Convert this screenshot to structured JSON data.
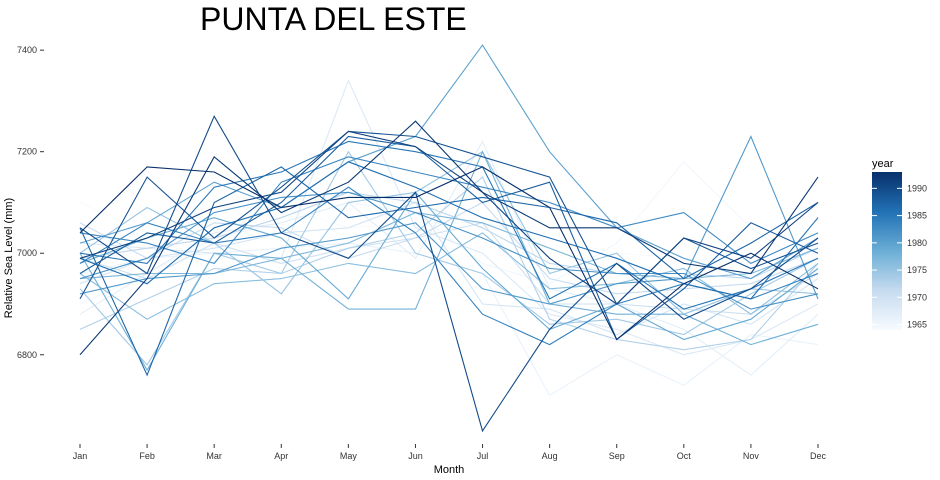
{
  "chart_data": {
    "type": "line",
    "title": "PUNTA DEL ESTE",
    "xlabel": "Month",
    "ylabel": "Relative Sea Level (mm)",
    "categories": [
      "Jan",
      "Feb",
      "Mar",
      "Apr",
      "May",
      "Jun",
      "Jul",
      "Aug",
      "Sep",
      "Oct",
      "Nov",
      "Dec"
    ],
    "y_ticks": [
      6800,
      7000,
      7200,
      7400
    ],
    "ylim": [
      6640,
      7420
    ],
    "grid": false,
    "legend": {
      "title": "year",
      "placement": "right",
      "type": "colorbar",
      "range": [
        1964,
        1993
      ],
      "ticks": [
        1965,
        1970,
        1975,
        1980,
        1985,
        1990
      ],
      "color_low": "#f7fbff",
      "color_high": "#08306b"
    },
    "series": [
      {
        "year": 1964,
        "values": [
          7100,
          7040,
          7090,
          7090,
          7050,
          7060,
          7060,
          7030,
          7000,
          6990,
          6980,
          7000
        ]
      },
      {
        "year": 1965,
        "values": [
          6900,
          6960,
          7030,
          7060,
          7100,
          7080,
          6980,
          6940,
          7020,
          7180,
          7050,
          6960
        ]
      },
      {
        "year": 1966,
        "values": [
          6960,
          6990,
          7000,
          7010,
          7020,
          7000,
          6960,
          6720,
          6800,
          6740,
          6840,
          6820
        ]
      },
      {
        "year": 1967,
        "values": [
          6880,
          6960,
          7040,
          7060,
          7100,
          6990,
          7220,
          6930,
          6900,
          6850,
          6760,
          6880
        ]
      },
      {
        "year": 1968,
        "values": [
          7020,
          7010,
          7000,
          6990,
          7340,
          7050,
          7000,
          6880,
          6850,
          6800,
          6830,
          6900
        ]
      },
      {
        "year": 1969,
        "values": [
          6940,
          6990,
          7010,
          7040,
          7050,
          7100,
          6900,
          6890,
          6840,
          6900,
          6860,
          6950
        ]
      },
      {
        "year": 1970,
        "values": [
          6990,
          6950,
          7020,
          6980,
          7010,
          7030,
          7060,
          6900,
          6900,
          6890,
          6880,
          6960
        ]
      },
      {
        "year": 1971,
        "values": [
          7060,
          6990,
          7060,
          7050,
          6990,
          7030,
          7100,
          6950,
          6920,
          6930,
          6940,
          6990
        ]
      },
      {
        "year": 1972,
        "values": [
          6990,
          7010,
          7030,
          7070,
          7120,
          7100,
          7050,
          6980,
          6960,
          6960,
          6950,
          7010
        ]
      },
      {
        "year": 1973,
        "values": [
          6850,
          6910,
          6970,
          6960,
          7010,
          7040,
          7150,
          6870,
          6830,
          6810,
          6830,
          6980
        ]
      },
      {
        "year": 1974,
        "values": [
          6930,
          6780,
          7000,
          6960,
          7200,
          7000,
          6960,
          6860,
          6870,
          6840,
          6920,
          6990
        ]
      },
      {
        "year": 1975,
        "values": [
          7000,
          7090,
          7020,
          6920,
          7100,
          7120,
          7200,
          6960,
          7000,
          6880,
          6930,
          6920
        ]
      },
      {
        "year": 1976,
        "values": [
          6960,
          6870,
          6940,
          6950,
          6980,
          6960,
          7040,
          6930,
          6940,
          6970,
          6880,
          6980
        ]
      },
      {
        "year": 1977,
        "values": [
          6950,
          6960,
          6960,
          6990,
          7020,
          7080,
          7060,
          7010,
          6960,
          6950,
          6960,
          7010
        ]
      },
      {
        "year": 1978,
        "values": [
          7000,
          6770,
          7000,
          6990,
          6890,
          6890,
          7200,
          6900,
          6880,
          6880,
          6820,
          6860
        ]
      },
      {
        "year": 1979,
        "values": [
          6980,
          7030,
          7070,
          7030,
          6910,
          7120,
          6970,
          6850,
          6900,
          6830,
          6870,
          6970
        ]
      },
      {
        "year": 1980,
        "values": [
          7020,
          7060,
          7140,
          7090,
          7180,
          7230,
          7410,
          7200,
          7050,
          6990,
          6950,
          7030
        ]
      },
      {
        "year": 1981,
        "values": [
          6920,
          6950,
          6960,
          7010,
          7030,
          7060,
          6930,
          6900,
          6940,
          6950,
          7230,
          6910
        ]
      },
      {
        "year": 1982,
        "values": [
          6950,
          6990,
          7080,
          7110,
          7120,
          7080,
          7030,
          6970,
          6960,
          6960,
          6890,
          6920
        ]
      },
      {
        "year": 1983,
        "values": [
          7040,
          7020,
          6980,
          7140,
          7190,
          7160,
          7130,
          7100,
          7050,
          7080,
          6980,
          7040
        ]
      },
      {
        "year": 1984,
        "values": [
          6980,
          7060,
          7020,
          7040,
          7130,
          7040,
          6880,
          6820,
          6900,
          6940,
          6910,
          6960
        ]
      },
      {
        "year": 1985,
        "values": [
          7000,
          6980,
          7130,
          7160,
          7220,
          7200,
          7170,
          6910,
          6980,
          6890,
          6930,
          6990
        ]
      },
      {
        "year": 1986,
        "values": [
          6990,
          6940,
          7050,
          7090,
          7180,
          7130,
          7070,
          7030,
          6990,
          6940,
          6910,
          7070
        ]
      },
      {
        "year": 1987,
        "values": [
          7050,
          6760,
          7100,
          7170,
          7070,
          7090,
          7110,
          7090,
          7060,
          6950,
          7020,
          7100
        ]
      },
      {
        "year": 1988,
        "values": [
          6960,
          7040,
          7020,
          7100,
          7230,
          7210,
          7100,
          7140,
          6830,
          6930,
          7060,
          7000
        ]
      },
      {
        "year": 1989,
        "values": [
          6910,
          7150,
          7030,
          7130,
          7240,
          7230,
          7190,
          7150,
          6900,
          7030,
          6970,
          7020
        ]
      },
      {
        "year": 1990,
        "values": [
          7050,
          6960,
          7270,
          7040,
          6990,
          7120,
          6650,
          6850,
          6980,
          6870,
          6930,
          7030
        ]
      },
      {
        "year": 1991,
        "values": [
          6990,
          7030,
          7090,
          7120,
          7240,
          7210,
          7120,
          6990,
          6900,
          7030,
          6990,
          7100
        ]
      },
      {
        "year": 1992,
        "values": [
          6800,
          6950,
          7190,
          7080,
          7140,
          7260,
          7120,
          7050,
          7050,
          6980,
          6960,
          7150
        ]
      },
      {
        "year": 1993,
        "values": [
          7040,
          7170,
          7160,
          7090,
          7110,
          7110,
          7170,
          7090,
          6830,
          6940,
          7000,
          6930
        ]
      }
    ]
  }
}
